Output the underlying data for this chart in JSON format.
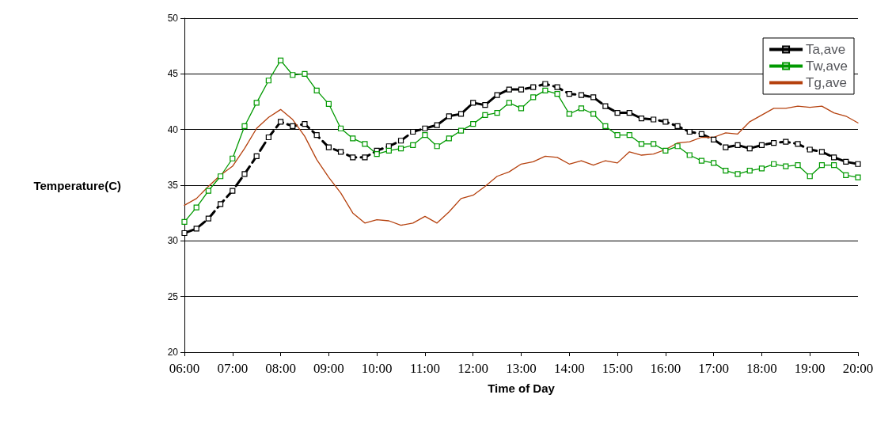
{
  "chart_data": {
    "type": "line",
    "xlabel": "Time of Day",
    "ylabel": "Temperature(C)",
    "x": [
      6,
      6.25,
      6.5,
      6.75,
      7,
      7.25,
      7.5,
      7.75,
      8,
      8.25,
      8.5,
      8.75,
      9,
      9.25,
      9.5,
      9.75,
      10,
      10.25,
      10.5,
      10.75,
      11,
      11.25,
      11.5,
      11.75,
      12,
      12.25,
      12.5,
      12.75,
      13,
      13.25,
      13.5,
      13.75,
      14,
      14.25,
      14.5,
      14.75,
      15,
      15.25,
      15.5,
      15.75,
      16,
      16.25,
      16.5,
      16.75,
      17,
      17.25,
      17.5,
      17.75,
      18,
      18.25,
      18.5,
      18.75,
      19,
      19.25,
      19.5,
      19.75,
      20
    ],
    "xlim": [
      6,
      20
    ],
    "xticks": [
      {
        "value": 6,
        "label": "06:00"
      },
      {
        "value": 7,
        "label": "07:00"
      },
      {
        "value": 8,
        "label": "08:00"
      },
      {
        "value": 9,
        "label": "09:00"
      },
      {
        "value": 10,
        "label": "10:00"
      },
      {
        "value": 11,
        "label": "11:00"
      },
      {
        "value": 12,
        "label": "12:00"
      },
      {
        "value": 13,
        "label": "13:00"
      },
      {
        "value": 14,
        "label": "14:00"
      },
      {
        "value": 15,
        "label": "15:00"
      },
      {
        "value": 16,
        "label": "16:00"
      },
      {
        "value": 17,
        "label": "17:00"
      },
      {
        "value": 18,
        "label": "18:00"
      },
      {
        "value": 19,
        "label": "19:00"
      },
      {
        "value": 20,
        "label": "20:00"
      }
    ],
    "ylim": [
      20,
      50
    ],
    "yticks": [
      20,
      25,
      30,
      35,
      40,
      45,
      50
    ],
    "grid": "y",
    "legend": "top right",
    "series": [
      {
        "name": "Ta,ave",
        "color": "#000000",
        "marker": "square",
        "line_style": "dashed",
        "values": [
          30.7,
          31.1,
          32.0,
          33.3,
          34.5,
          36.0,
          37.6,
          39.3,
          40.7,
          40.3,
          40.5,
          39.5,
          38.4,
          38.0,
          37.5,
          37.5,
          38.1,
          38.5,
          39.0,
          39.8,
          40.1,
          40.4,
          41.2,
          41.4,
          42.4,
          42.2,
          43.1,
          43.6,
          43.6,
          43.8,
          44.1,
          43.8,
          43.2,
          43.1,
          42.9,
          42.1,
          41.5,
          41.5,
          41.0,
          40.9,
          40.7,
          40.3,
          39.8,
          39.6,
          39.1,
          38.4,
          38.6,
          38.3,
          38.6,
          38.8,
          38.9,
          38.7,
          38.2,
          38.0,
          37.5,
          37.1,
          36.9
        ]
      },
      {
        "name": "Tw,ave",
        "color": "#009900",
        "marker": "square",
        "line_style": "solid",
        "values": [
          31.7,
          33.0,
          34.5,
          35.8,
          37.4,
          40.3,
          42.4,
          44.4,
          46.2,
          44.9,
          45.0,
          43.5,
          42.3,
          40.1,
          39.2,
          38.7,
          37.8,
          38.1,
          38.3,
          38.6,
          39.5,
          38.5,
          39.2,
          39.9,
          40.5,
          41.3,
          41.5,
          42.4,
          41.9,
          42.9,
          43.5,
          43.2,
          41.4,
          41.9,
          41.4,
          40.3,
          39.5,
          39.5,
          38.7,
          38.7,
          38.1,
          38.5,
          37.7,
          37.2,
          37.0,
          36.3,
          36.0,
          36.3,
          36.5,
          36.9,
          36.7,
          36.8,
          35.8,
          36.8,
          36.8,
          35.9,
          35.7
        ]
      },
      {
        "name": "Tg,ave",
        "color": "#b5410e",
        "marker": "none",
        "line_style": "solid",
        "values": [
          33.2,
          33.8,
          34.9,
          35.9,
          36.7,
          38.3,
          40.1,
          41.1,
          41.8,
          40.9,
          39.4,
          37.3,
          35.7,
          34.3,
          32.5,
          31.6,
          31.9,
          31.8,
          31.4,
          31.6,
          32.2,
          31.6,
          32.6,
          33.8,
          34.1,
          34.9,
          35.8,
          36.2,
          36.9,
          37.1,
          37.6,
          37.5,
          36.9,
          37.2,
          36.8,
          37.2,
          37.0,
          38.0,
          37.7,
          37.8,
          38.2,
          38.8,
          38.9,
          39.3,
          39.3,
          39.7,
          39.6,
          40.7,
          41.3,
          41.9,
          41.9,
          42.1,
          42.0,
          42.1,
          41.5,
          41.2,
          40.6
        ]
      }
    ]
  }
}
